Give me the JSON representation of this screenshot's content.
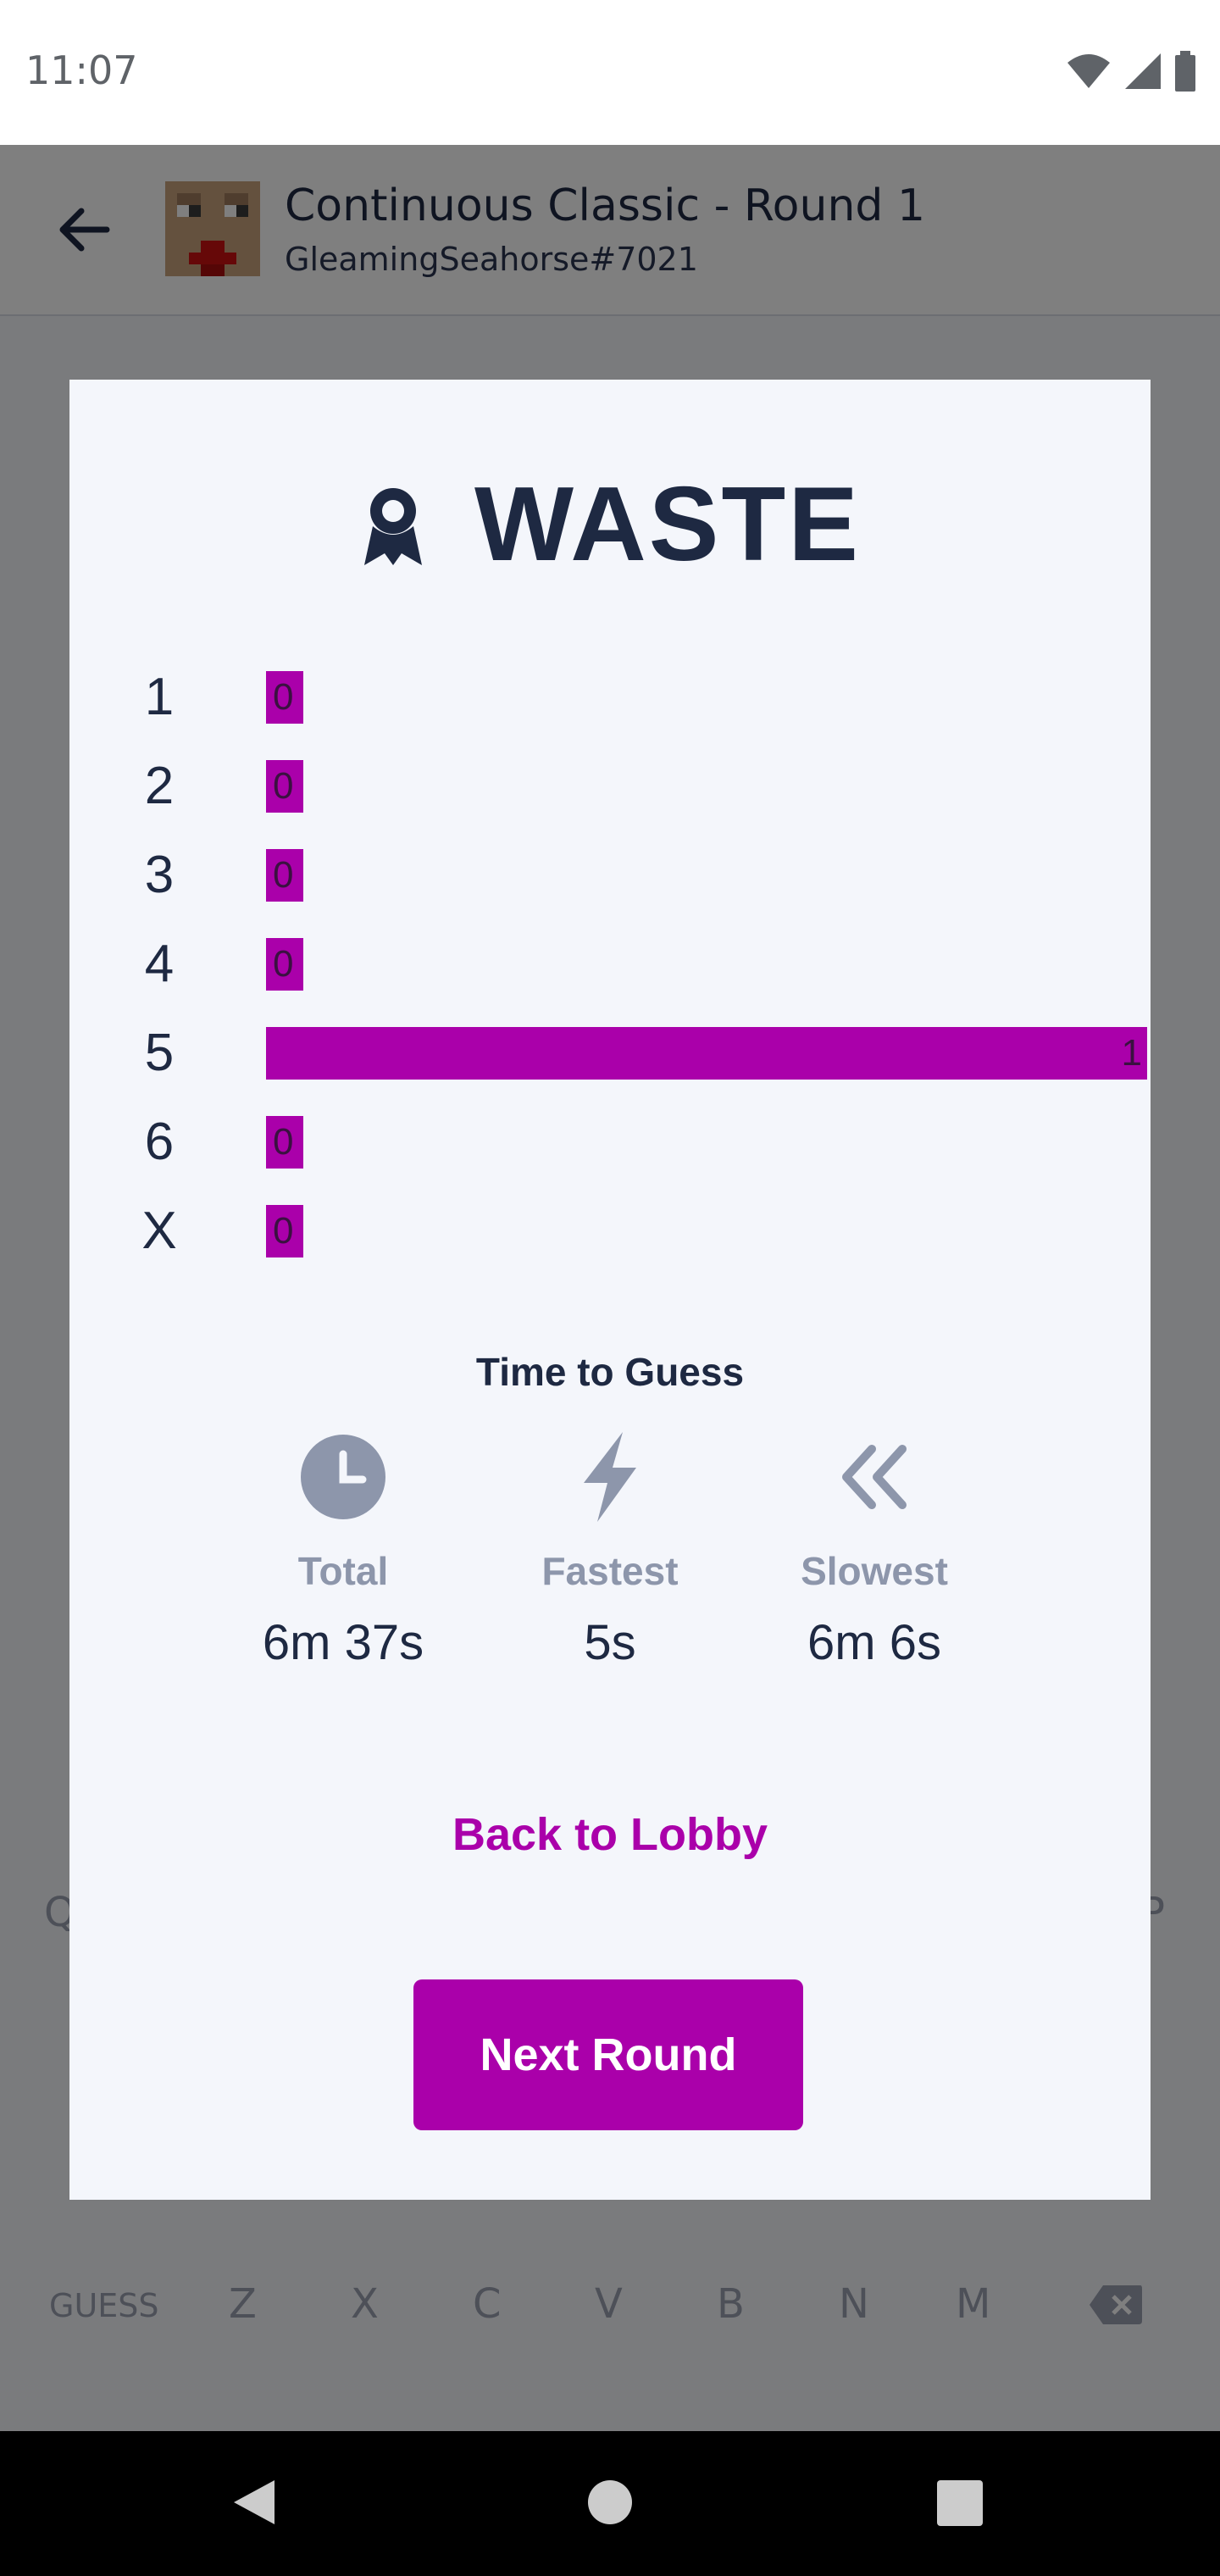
{
  "status_bar": {
    "time": "11:07"
  },
  "app_bar": {
    "title": "Continuous Classic - Round 1",
    "subtitle": "GleamingSeahorse#7021"
  },
  "keyboard": {
    "partial_left": "Q",
    "partial_right": "P",
    "bottom_row": [
      "GUESS",
      "Z",
      "X",
      "C",
      "V",
      "B",
      "N",
      "M"
    ]
  },
  "modal": {
    "word": "WASTE",
    "distribution": [
      {
        "label": "1",
        "count": "0",
        "value": 0
      },
      {
        "label": "2",
        "count": "0",
        "value": 0
      },
      {
        "label": "3",
        "count": "0",
        "value": 0
      },
      {
        "label": "4",
        "count": "0",
        "value": 0
      },
      {
        "label": "5",
        "count": "1",
        "value": 1
      },
      {
        "label": "6",
        "count": "0",
        "value": 0
      },
      {
        "label": "X",
        "count": "0",
        "value": 0
      }
    ],
    "time_section_title": "Time to Guess",
    "stats": [
      {
        "label": "Total",
        "value": "6m 37s",
        "icon": "clock-icon"
      },
      {
        "label": "Fastest",
        "value": "5s",
        "icon": "lightning-icon"
      },
      {
        "label": "Slowest",
        "value": "6m 6s",
        "icon": "chevrons-left-icon"
      }
    ],
    "back_link": "Back to Lobby",
    "next_button": "Next Round"
  },
  "colors": {
    "accent": "#aa00aa",
    "text_dark": "#1e2942",
    "muted": "#8d96ab",
    "modal_bg": "#f4f6fb"
  }
}
